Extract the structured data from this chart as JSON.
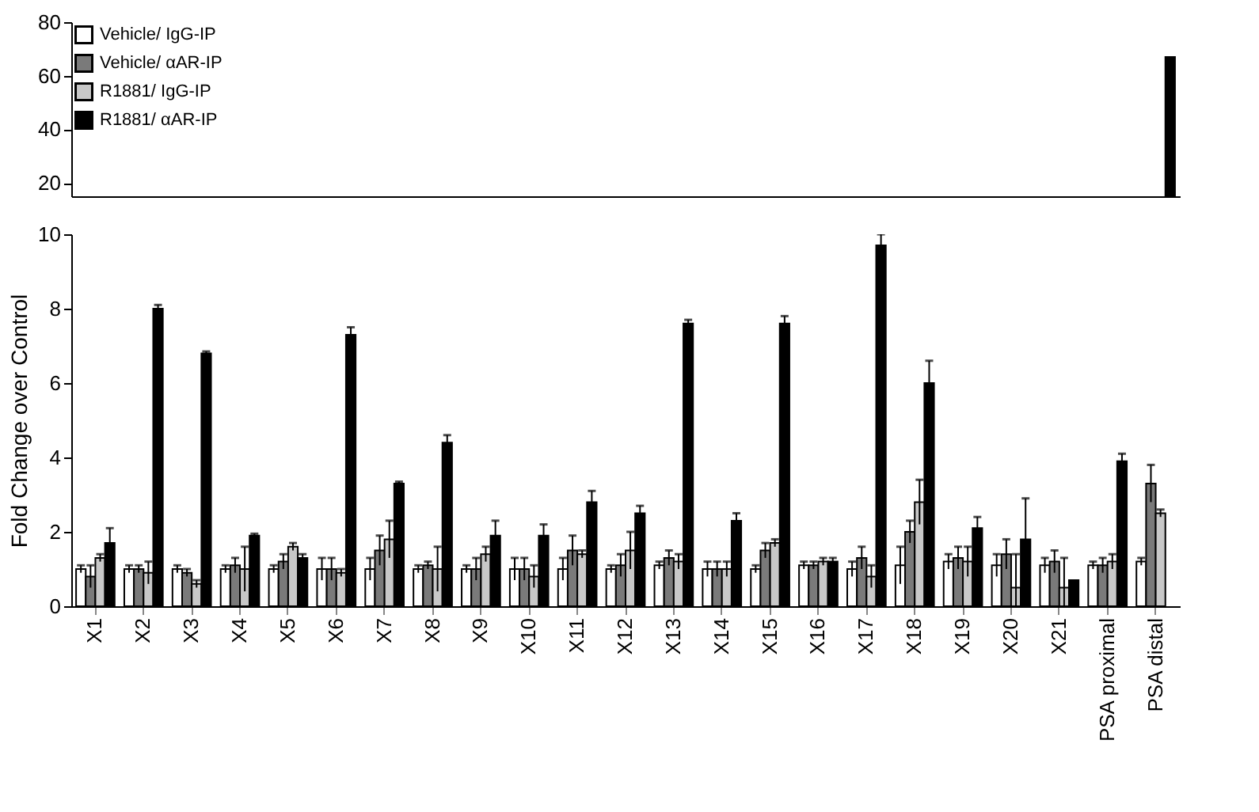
{
  "chart_data": [
    {
      "type": "bar",
      "categories": [
        null,
        null,
        null,
        null,
        null,
        null,
        null,
        null,
        null,
        null,
        null,
        null,
        null,
        null,
        null,
        null,
        null,
        null,
        null,
        null,
        null,
        null,
        null
      ],
      "ylim": [
        15,
        80
      ],
      "yticks": [
        20,
        40,
        60,
        80
      ],
      "tick_labels": "y",
      "legend": "top left",
      "grid": false,
      "series": [
        {
          "name": "Vehicle/ IgG-IP",
          "color": "#ffffff",
          "values": [
            null,
            null,
            null,
            null,
            null,
            null,
            null,
            null,
            null,
            null,
            null,
            null,
            null,
            null,
            null,
            null,
            null,
            null,
            null,
            null,
            null,
            null,
            null
          ]
        },
        {
          "name": "Vehicle/ αAR-IP",
          "color": "#7a7a7a",
          "values": [
            null,
            null,
            null,
            null,
            null,
            null,
            null,
            null,
            null,
            null,
            null,
            null,
            null,
            null,
            null,
            null,
            null,
            null,
            null,
            null,
            null,
            null,
            null
          ]
        },
        {
          "name": "R1881/ IgG-IP",
          "color": "#c8c8c8",
          "values": [
            null,
            null,
            null,
            null,
            null,
            null,
            null,
            null,
            null,
            null,
            null,
            null,
            null,
            null,
            null,
            null,
            null,
            null,
            null,
            null,
            null,
            null,
            null
          ]
        },
        {
          "name": "R1881/ αAR-IP",
          "color": "#000000",
          "values": [
            null,
            null,
            null,
            null,
            null,
            null,
            null,
            null,
            null,
            null,
            null,
            null,
            null,
            null,
            null,
            null,
            null,
            null,
            null,
            null,
            null,
            null,
            67
          ]
        }
      ]
    },
    {
      "type": "bar",
      "categories": [
        "X1",
        "X2",
        "X3",
        "X4",
        "X5",
        "X6",
        "X7",
        "X8",
        "X9",
        "X10",
        "X11",
        "X12",
        "X13",
        "X14",
        "X15",
        "X16",
        "X17",
        "X18",
        "X19",
        "X20",
        "X21",
        "PSA proximal",
        "PSA distal"
      ],
      "ylim": [
        0,
        10
      ],
      "yticks": [
        0,
        2,
        4,
        6,
        8,
        10
      ],
      "ylabel": "Fold Change over Control",
      "grid": false,
      "series": [
        {
          "color": "#ffffff",
          "values": [
            1.0,
            1.0,
            1.0,
            1.0,
            1.0,
            1.0,
            1.0,
            1.0,
            1.0,
            1.0,
            1.0,
            1.0,
            1.1,
            1.0,
            1.0,
            1.1,
            1.0,
            1.1,
            1.2,
            1.1,
            1.1,
            1.1,
            1.2
          ],
          "errors": [
            0.1,
            0.1,
            0.1,
            0.1,
            0.1,
            0.3,
            0.3,
            0.1,
            0.1,
            0.3,
            0.3,
            0.1,
            0.1,
            0.2,
            0.1,
            0.1,
            0.2,
            0.5,
            0.2,
            0.3,
            0.2,
            0.1,
            0.1
          ]
        },
        {
          "color": "#7a7a7a",
          "values": [
            0.8,
            1.0,
            0.9,
            1.1,
            1.2,
            1.0,
            1.5,
            1.1,
            1.0,
            1.0,
            1.5,
            1.1,
            1.3,
            1.0,
            1.5,
            1.1,
            1.3,
            2.0,
            1.3,
            1.4,
            1.2,
            1.1,
            3.3
          ],
          "errors": [
            0.3,
            0.1,
            0.1,
            0.2,
            0.2,
            0.3,
            0.4,
            0.1,
            0.3,
            0.3,
            0.4,
            0.3,
            0.2,
            0.2,
            0.2,
            0.1,
            0.3,
            0.3,
            0.3,
            0.4,
            0.3,
            0.2,
            0.5
          ]
        },
        {
          "color": "#c8c8c8",
          "values": [
            1.3,
            0.9,
            0.6,
            1.0,
            1.6,
            0.9,
            1.8,
            1.0,
            1.4,
            0.8,
            1.4,
            1.5,
            1.2,
            1.0,
            1.7,
            1.2,
            0.8,
            2.8,
            1.2,
            0.5,
            0.5,
            1.2,
            2.5
          ],
          "errors": [
            0.1,
            0.3,
            0.1,
            0.6,
            0.1,
            0.1,
            0.5,
            0.6,
            0.2,
            0.3,
            0.1,
            0.5,
            0.2,
            0.2,
            0.1,
            0.1,
            0.3,
            0.6,
            0.4,
            0.9,
            0.8,
            0.2,
            0.1
          ]
        },
        {
          "color": "#000000",
          "values": [
            1.7,
            8.0,
            6.8,
            1.9,
            1.3,
            7.3,
            3.3,
            4.4,
            1.9,
            1.9,
            2.8,
            2.5,
            7.6,
            2.3,
            7.6,
            1.2,
            9.7,
            6.0,
            2.1,
            1.8,
            0.7,
            3.9,
            null
          ],
          "errors": [
            0.4,
            0.1,
            0.05,
            0.05,
            0.1,
            0.2,
            0.05,
            0.2,
            0.4,
            0.3,
            0.3,
            0.2,
            0.1,
            0.2,
            0.2,
            0.1,
            0.3,
            0.6,
            0.3,
            1.1,
            null,
            0.2,
            null
          ]
        }
      ]
    }
  ]
}
